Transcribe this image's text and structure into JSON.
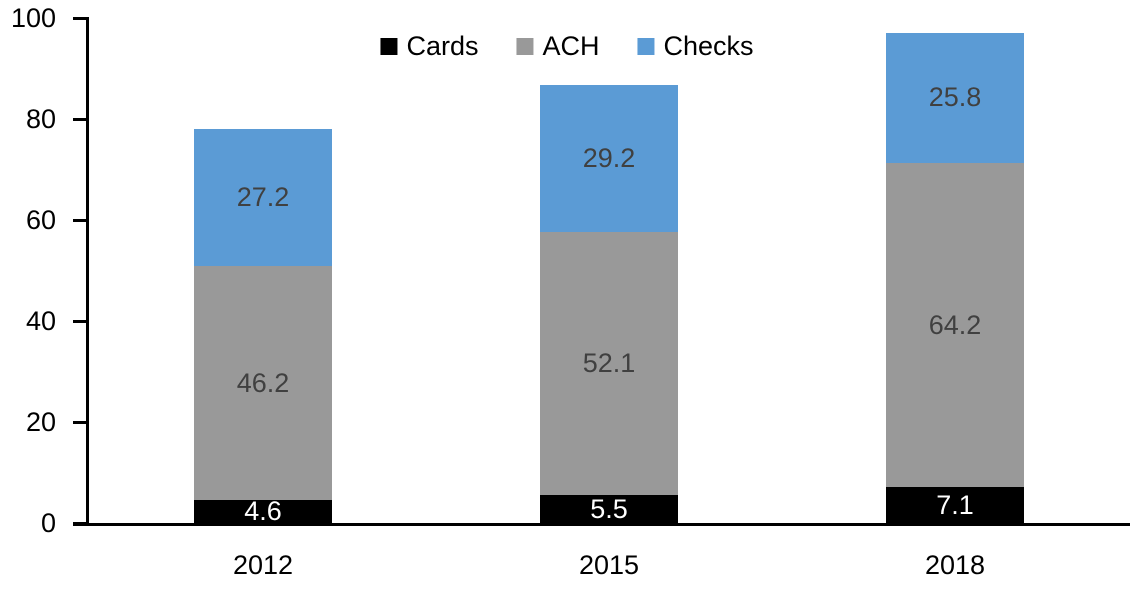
{
  "chart_data": {
    "type": "bar",
    "stacked": true,
    "title": "",
    "xlabel": "",
    "ylabel": "",
    "categories": [
      "2012",
      "2015",
      "2018"
    ],
    "series": [
      {
        "name": "Cards",
        "values": [
          4.6,
          5.5,
          7.1
        ],
        "color": "#000000",
        "label_color": "#FFFFFF"
      },
      {
        "name": "ACH",
        "values": [
          46.2,
          52.1,
          64.2
        ],
        "color": "#999999",
        "label_color": "#404040"
      },
      {
        "name": "Checks",
        "values": [
          27.2,
          29.2,
          25.8
        ],
        "color": "#5B9BD5",
        "label_color": "#404040"
      }
    ],
    "data_labels_visible": true,
    "y_ticks": [
      "0",
      "20",
      "40",
      "60",
      "80",
      "100"
    ],
    "ylim": [
      0,
      100
    ],
    "grid": false,
    "legend_position": "top",
    "legend_labels": [
      "Cards",
      "ACH",
      "Checks"
    ]
  },
  "colors": {
    "axis": "#000000",
    "background": "#FFFFFF",
    "cards": "#000000",
    "ach": "#999999",
    "checks": "#5B9BD5",
    "data_label_dark": "#404040",
    "data_label_light": "#FFFFFF"
  }
}
